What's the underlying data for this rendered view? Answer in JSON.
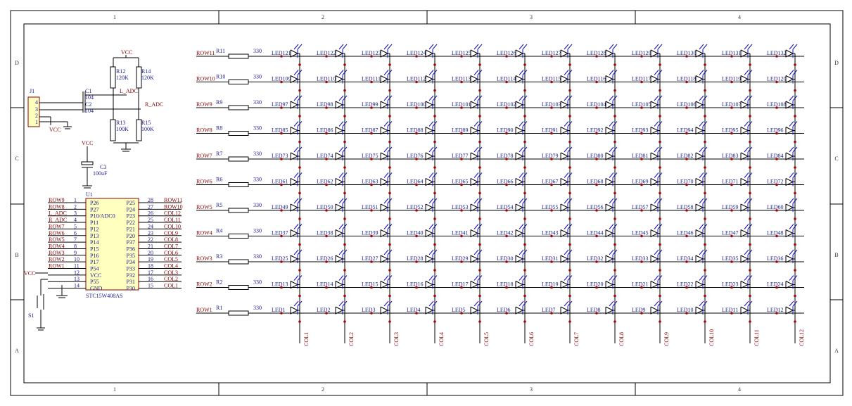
{
  "frame": {
    "columns": [
      "1",
      "2",
      "3",
      "4"
    ],
    "rows": [
      "D",
      "C",
      "B",
      "A"
    ]
  },
  "power": {
    "connector": {
      "ref": "J1",
      "pins": [
        "4",
        "3",
        "2",
        "1"
      ],
      "vcc": "VCC"
    },
    "c1": {
      "ref": "C1",
      "value": "104"
    },
    "c2": {
      "ref": "C2",
      "value": "104"
    },
    "r12": {
      "ref": "R12",
      "value": "120K"
    },
    "r14": {
      "ref": "R14",
      "value": "120K"
    },
    "r13": {
      "ref": "R13",
      "value": "100K"
    },
    "r15": {
      "ref": "R15",
      "value": "100K"
    },
    "vcc_top": "VCC",
    "l_adc": "L_ADC",
    "r_adc": "R_ADC",
    "c3": {
      "ref": "C3",
      "value": "100uF",
      "vcc": "VCC"
    }
  },
  "mcu": {
    "ref": "U1",
    "part": "STC15W408AS",
    "vcc": "VCC",
    "switch": "S1",
    "left_pins": [
      {
        "net": "ROW9",
        "num": "1",
        "name": "P26"
      },
      {
        "net": "ROW8",
        "num": "2",
        "name": "P27"
      },
      {
        "net": "L_ADC",
        "num": "3",
        "name": "P10/ADC0"
      },
      {
        "net": "R_ADC",
        "num": "4",
        "name": "P11"
      },
      {
        "net": "ROW7",
        "num": "5",
        "name": "P12"
      },
      {
        "net": "ROW6",
        "num": "6",
        "name": "P13"
      },
      {
        "net": "ROW5",
        "num": "7",
        "name": "P14"
      },
      {
        "net": "ROW4",
        "num": "8",
        "name": "P15"
      },
      {
        "net": "ROW3",
        "num": "9",
        "name": "P16"
      },
      {
        "net": "ROW2",
        "num": "10",
        "name": "P17"
      },
      {
        "net": "ROW1",
        "num": "11",
        "name": "P54"
      },
      {
        "num": "12",
        "name": "VCC"
      },
      {
        "num": "13",
        "name": "P55"
      },
      {
        "num": "14",
        "name": "GND"
      }
    ],
    "right_pins": [
      {
        "net": "ROW11",
        "num": "28",
        "name": "P25"
      },
      {
        "net": "ROW10",
        "num": "27",
        "name": "P24"
      },
      {
        "net": "COL12",
        "num": "26",
        "name": "P23"
      },
      {
        "net": "COL11",
        "num": "25",
        "name": "P22"
      },
      {
        "net": "COL10",
        "num": "24",
        "name": "P21"
      },
      {
        "net": "COL9",
        "num": "23",
        "name": "P20"
      },
      {
        "net": "COL8",
        "num": "22",
        "name": "P37"
      },
      {
        "net": "COL7",
        "num": "21",
        "name": "P36"
      },
      {
        "net": "COL6",
        "num": "20",
        "name": "P35"
      },
      {
        "net": "COL5",
        "num": "19",
        "name": "P34"
      },
      {
        "net": "COL4",
        "num": "18",
        "name": "P33"
      },
      {
        "net": "COL3",
        "num": "17",
        "name": "P32"
      },
      {
        "net": "COL2",
        "num": "16",
        "name": "P31"
      },
      {
        "net": "COL1",
        "num": "15",
        "name": "P30"
      }
    ]
  },
  "matrix": {
    "columns": [
      "COL1",
      "COL2",
      "COL3",
      "COL4",
      "COL5",
      "COL6",
      "COL7",
      "COL8",
      "COL9",
      "COL10",
      "COL11",
      "COL12"
    ],
    "rows": [
      {
        "net": "ROW11",
        "ref": "R11",
        "value": "330",
        "leds": [
          "LED121",
          "LED122",
          "LED123",
          "LED124",
          "LED125",
          "LED126",
          "LED127",
          "LED128",
          "LED129",
          "LED130",
          "LED131",
          "LED132"
        ]
      },
      {
        "net": "ROW10",
        "ref": "R10",
        "value": "330",
        "leds": [
          "LED109",
          "LED110",
          "LED111",
          "LED112",
          "LED113",
          "LED114",
          "LED115",
          "LED116",
          "LED117",
          "LED118",
          "LED119",
          "LED120"
        ]
      },
      {
        "net": "ROW9",
        "ref": "R9",
        "value": "330",
        "leds": [
          "LED97",
          "LED98",
          "LED99",
          "LED100",
          "LED101",
          "LED102",
          "LED103",
          "LED104",
          "LED105",
          "LED106",
          "LED107",
          "LED108"
        ]
      },
      {
        "net": "ROW8",
        "ref": "R8",
        "value": "330",
        "leds": [
          "LED85",
          "LED86",
          "LED87",
          "LED88",
          "LED89",
          "LED90",
          "LED91",
          "LED92",
          "LED93",
          "LED94",
          "LED95",
          "LED96"
        ]
      },
      {
        "net": "ROW7",
        "ref": "R7",
        "value": "330",
        "leds": [
          "LED73",
          "LED74",
          "LED75",
          "LED76",
          "LED77",
          "LED78",
          "LED79",
          "LED80",
          "LED81",
          "LED82",
          "LED83",
          "LED84"
        ]
      },
      {
        "net": "ROW6",
        "ref": "R6",
        "value": "330",
        "leds": [
          "LED61",
          "LED62",
          "LED63",
          "LED64",
          "LED65",
          "LED66",
          "LED67",
          "LED68",
          "LED69",
          "LED70",
          "LED71",
          "LED72"
        ]
      },
      {
        "net": "ROW5",
        "ref": "R5",
        "value": "330",
        "leds": [
          "LED49",
          "LED50",
          "LED51",
          "LED52",
          "LED53",
          "LED54",
          "LED55",
          "LED56",
          "LED57",
          "LED58",
          "LED59",
          "LED60"
        ]
      },
      {
        "net": "ROW4",
        "ref": "R4",
        "value": "330",
        "leds": [
          "LED37",
          "LED38",
          "LED39",
          "LED40",
          "LED41",
          "LED42",
          "LED43",
          "LED44",
          "LED45",
          "LED46",
          "LED47",
          "LED48"
        ]
      },
      {
        "net": "ROW3",
        "ref": "R3",
        "value": "330",
        "leds": [
          "LED25",
          "LED26",
          "LED27",
          "LED28",
          "LED29",
          "LED30",
          "LED31",
          "LED32",
          "LED33",
          "LED34",
          "LED35",
          "LED36"
        ]
      },
      {
        "net": "ROW2",
        "ref": "R2",
        "value": "330",
        "leds": [
          "LED13",
          "LED14",
          "LED15",
          "LED16",
          "LED17",
          "LED18",
          "LED19",
          "LED20",
          "LED21",
          "LED22",
          "LED23",
          "LED24"
        ]
      },
      {
        "net": "ROW1",
        "ref": "R1",
        "value": "330",
        "leds": [
          "LED1",
          "LED2",
          "LED3",
          "LED4",
          "LED5",
          "LED6",
          "LED7",
          "LED8",
          "LED9",
          "LED10",
          "LED11",
          "LED12"
        ]
      }
    ]
  }
}
